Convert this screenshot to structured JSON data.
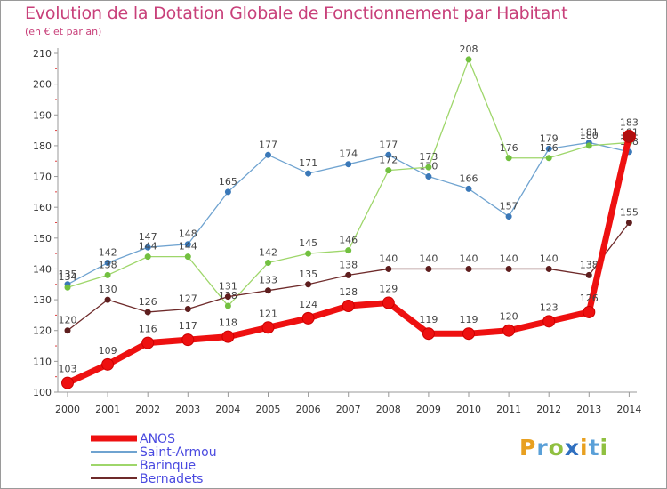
{
  "chart_data": {
    "type": "line",
    "title": "Evolution de la Dotation Globale de Fonctionnement par Habitant",
    "subtitle": "(en € et par an)",
    "xlabel": "",
    "ylabel": "",
    "x": [
      2000,
      2001,
      2002,
      2003,
      2004,
      2005,
      2006,
      2007,
      2008,
      2009,
      2010,
      2011,
      2012,
      2013,
      2014
    ],
    "ylim": [
      100,
      210
    ],
    "yticks": [
      100,
      110,
      120,
      130,
      140,
      150,
      160,
      170,
      180,
      190,
      200,
      210
    ],
    "grid": false,
    "legend_position": "bottom-left",
    "series": [
      {
        "name": "Saint-Armou",
        "color": "#6fa3d0",
        "marker": "#3a78b8",
        "values": [
          135,
          142,
          147,
          148,
          165,
          177,
          171,
          174,
          177,
          170,
          166,
          157,
          179,
          181,
          178
        ]
      },
      {
        "name": "Barinque",
        "color": "#9ed66a",
        "marker": "#72c040",
        "values": [
          134,
          138,
          144,
          144,
          128,
          142,
          145,
          146,
          172,
          173,
          208,
          176,
          176,
          180,
          181
        ]
      },
      {
        "name": "Bernadets",
        "color": "#6e2a2a",
        "marker": "#5e1e1e",
        "values": [
          120,
          130,
          126,
          127,
          131,
          133,
          135,
          138,
          140,
          140,
          140,
          140,
          140,
          138,
          155
        ]
      },
      {
        "name": "ANOS",
        "color": "#ee1010",
        "marker": "#ee1010",
        "values": [
          103,
          109,
          116,
          117,
          118,
          121,
          124,
          128,
          129,
          119,
          119,
          120,
          123,
          126,
          183
        ]
      }
    ],
    "legend": [
      {
        "name": "ANOS",
        "color": "#ee1010"
      },
      {
        "name": "Saint-Armou",
        "color": "#6fa3d0"
      },
      {
        "name": "Barinque",
        "color": "#9ed66a"
      },
      {
        "name": "Bernadets",
        "color": "#6e2a2a"
      }
    ]
  },
  "logo": {
    "text": "Proxiti"
  }
}
